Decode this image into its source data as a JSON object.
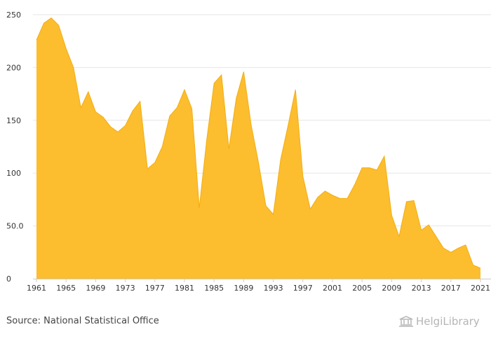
{
  "chart_data": {
    "type": "area",
    "x": [
      1961,
      1962,
      1963,
      1964,
      1965,
      1966,
      1967,
      1968,
      1969,
      1970,
      1971,
      1972,
      1973,
      1974,
      1975,
      1976,
      1977,
      1978,
      1979,
      1980,
      1981,
      1982,
      1983,
      1984,
      1985,
      1986,
      1987,
      1988,
      1989,
      1990,
      1991,
      1992,
      1993,
      1994,
      1995,
      1996,
      1997,
      1998,
      1999,
      2000,
      2001,
      2002,
      2003,
      2004,
      2005,
      2006,
      2007,
      2008,
      2009,
      2010,
      2011,
      2012,
      2013,
      2014,
      2015,
      2016,
      2017,
      2018,
      2019,
      2020,
      2021
    ],
    "values": [
      226,
      242,
      247,
      240,
      218,
      200,
      162,
      177,
      158,
      153,
      144,
      139,
      145,
      159,
      168,
      104,
      110,
      125,
      154,
      162,
      179,
      161,
      67,
      131,
      185,
      193,
      123,
      171,
      196,
      146,
      110,
      69,
      61,
      113,
      145,
      179,
      97,
      66,
      77,
      83,
      79,
      76,
      76,
      89,
      105,
      105,
      103,
      116,
      60,
      40,
      73,
      74,
      46,
      51,
      40,
      29,
      25,
      29,
      32,
      13,
      10
    ],
    "xticks": [
      "1961",
      "1965",
      "1969",
      "1973",
      "1977",
      "1981",
      "1985",
      "1989",
      "1993",
      "1997",
      "2001",
      "2005",
      "2009",
      "2013",
      "2017",
      "2021"
    ],
    "yticks": [
      "0",
      "50.0",
      "100",
      "150",
      "200",
      "250"
    ],
    "ylim": [
      0,
      250
    ],
    "xlim": [
      1961,
      2021
    ],
    "grid": true,
    "colors": {
      "fill": "#FCBD2F",
      "line": "#F2AE12",
      "grid": "#E6E6E6",
      "axis": "#CCCCCC"
    }
  },
  "source_text": "Source: National Statistical Office",
  "logo_text": "HelgiLibrary"
}
